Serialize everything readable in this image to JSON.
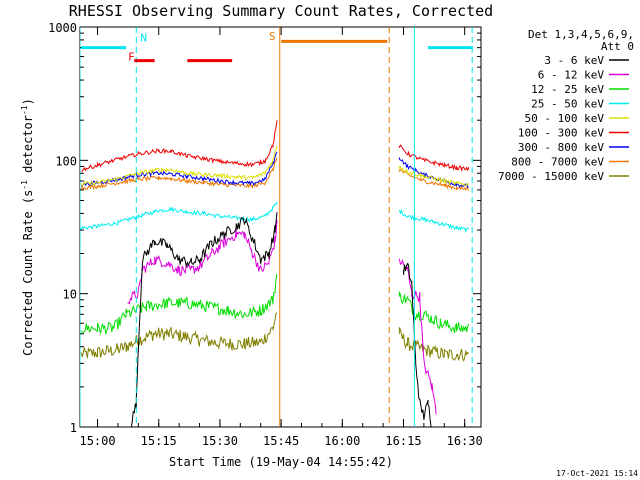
{
  "chart_data": {
    "type": "line",
    "title": "RHESSI Observing Summary Count Rates, Corrected",
    "xlabel": "Start Time (19-May-04 14:55:42)",
    "ylabel": "Corrected Count Rate (s^-1 detector^-1)",
    "ylabel_main": "Corrected Count Rate (s",
    "ylabel_sup1": "-1",
    "ylabel_mid": " detector",
    "ylabel_sup2": "-1",
    "ylabel_end": ")",
    "yscale": "log",
    "ylim": [
      1,
      1000
    ],
    "xlim": [
      "14:55:42",
      "16:34"
    ],
    "x_ticks": [
      "15:00",
      "15:15",
      "15:30",
      "15:45",
      "16:00",
      "16:15",
      "16:30"
    ],
    "y_ticks": [
      "1",
      "10",
      "100",
      "1000"
    ],
    "timestamp": "17-Oct-2021 15:14",
    "legend_header": [
      "Det 1,3,4,5,6,9,",
      "Att 0"
    ],
    "annotations": [
      {
        "text": "N",
        "color": "#00e5ee"
      },
      {
        "text": "F",
        "color": "#ee0000"
      },
      {
        "text": "S",
        "color": "#ee7700"
      }
    ],
    "series": [
      {
        "name": "3 - 6 keV",
        "color": "#000000",
        "points": [
          [
            "15:08",
            1
          ],
          [
            "15:09:30",
            1.5
          ],
          [
            "15:10",
            4
          ],
          [
            "15:11",
            18
          ],
          [
            "15:14",
            25
          ],
          [
            "15:17",
            23
          ],
          [
            "15:20",
            18
          ],
          [
            "15:23",
            17
          ],
          [
            "15:25",
            18
          ],
          [
            "15:28",
            24
          ],
          [
            "15:31",
            28
          ],
          [
            "15:34",
            32
          ],
          [
            "15:36",
            36
          ],
          [
            "15:38",
            26
          ],
          [
            "15:40",
            18
          ],
          [
            "15:42",
            20
          ],
          [
            "15:43:30",
            30
          ],
          [
            "15:44",
            40
          ],
          [
            "16:15",
            15
          ],
          [
            "16:16",
            16
          ],
          [
            "16:17",
            12
          ],
          [
            "16:18",
            3
          ],
          [
            "16:19",
            1.5
          ],
          [
            "16:20",
            1.2
          ],
          [
            "16:21",
            1.5
          ],
          [
            "16:22",
            1
          ]
        ]
      },
      {
        "name": "6 - 12 keV",
        "color": "#dd00dd",
        "points": [
          [
            "15:07:20",
            9
          ],
          [
            "15:10",
            10
          ],
          [
            "15:11",
            15
          ],
          [
            "15:14",
            18
          ],
          [
            "15:17",
            17
          ],
          [
            "15:20",
            15
          ],
          [
            "15:23",
            15
          ],
          [
            "15:25",
            16
          ],
          [
            "15:28",
            20
          ],
          [
            "15:31",
            24
          ],
          [
            "15:34",
            28
          ],
          [
            "15:36",
            28
          ],
          [
            "15:38",
            20
          ],
          [
            "15:40",
            15
          ],
          [
            "15:42",
            17
          ],
          [
            "15:43:30",
            25
          ],
          [
            "15:44",
            33
          ],
          [
            "16:14",
            18
          ],
          [
            "16:16",
            15
          ],
          [
            "16:17",
            10
          ],
          [
            "16:19",
            9.5
          ],
          [
            "16:20",
            3
          ],
          [
            "16:22",
            2
          ],
          [
            "16:23",
            1.3
          ]
        ]
      },
      {
        "name": "12 - 25 keV",
        "color": "#00dd00",
        "points": [
          [
            "14:56",
            5.5
          ],
          [
            "15:00",
            5.5
          ],
          [
            "15:04",
            5.5
          ],
          [
            "15:07",
            7
          ],
          [
            "15:12",
            8
          ],
          [
            "15:17",
            8.5
          ],
          [
            "15:22",
            8.5
          ],
          [
            "15:27",
            8
          ],
          [
            "15:32",
            7.5
          ],
          [
            "15:36",
            7
          ],
          [
            "15:40",
            7.5
          ],
          [
            "15:43",
            9
          ],
          [
            "15:44",
            14
          ],
          [
            "16:14",
            9.5
          ],
          [
            "16:16",
            9
          ],
          [
            "16:18",
            7
          ],
          [
            "16:20",
            7
          ],
          [
            "16:24",
            6
          ],
          [
            "16:28",
            5.5
          ],
          [
            "16:31",
            5.5
          ]
        ]
      },
      {
        "name": "25 - 50 keV",
        "color": "#00eeee",
        "points": [
          [
            "14:56",
            31
          ],
          [
            "15:00",
            32
          ],
          [
            "15:05",
            34
          ],
          [
            "15:10",
            38
          ],
          [
            "15:15",
            42
          ],
          [
            "15:18",
            43
          ],
          [
            "15:22",
            41
          ],
          [
            "15:26",
            40
          ],
          [
            "15:30",
            38
          ],
          [
            "15:34",
            37
          ],
          [
            "15:38",
            36
          ],
          [
            "15:41",
            38
          ],
          [
            "15:43",
            44
          ],
          [
            "15:44",
            48
          ],
          [
            "16:14",
            42
          ],
          [
            "16:16",
            38
          ],
          [
            "16:20",
            36
          ],
          [
            "16:25",
            33
          ],
          [
            "16:28",
            31
          ],
          [
            "16:31",
            30
          ]
        ]
      },
      {
        "name": "50 - 100 keV",
        "color": "#dddd00",
        "points": [
          [
            "14:56",
            66
          ],
          [
            "15:00",
            68
          ],
          [
            "15:05",
            73
          ],
          [
            "15:10",
            80
          ],
          [
            "15:15",
            85
          ],
          [
            "15:18",
            85
          ],
          [
            "15:22",
            80
          ],
          [
            "15:26",
            78
          ],
          [
            "15:30",
            77
          ],
          [
            "15:34",
            75
          ],
          [
            "15:38",
            74
          ],
          [
            "15:41",
            80
          ],
          [
            "15:43",
            100
          ],
          [
            "15:44",
            130
          ],
          [
            "16:14",
            90
          ],
          [
            "16:16",
            82
          ],
          [
            "16:20",
            76
          ],
          [
            "16:25",
            70
          ],
          [
            "16:28",
            67
          ],
          [
            "16:31",
            66
          ]
        ]
      },
      {
        "name": "100 - 300 keV",
        "color": "#ee0000",
        "points": [
          [
            "14:56",
            85
          ],
          [
            "15:00",
            92
          ],
          [
            "15:05",
            102
          ],
          [
            "15:10",
            112
          ],
          [
            "15:15",
            118
          ],
          [
            "15:18",
            117
          ],
          [
            "15:22",
            108
          ],
          [
            "15:26",
            103
          ],
          [
            "15:30",
            98
          ],
          [
            "15:34",
            95
          ],
          [
            "15:38",
            93
          ],
          [
            "15:41",
            98
          ],
          [
            "15:43",
            130
          ],
          [
            "15:44",
            195
          ],
          [
            "16:14",
            128
          ],
          [
            "16:16",
            112
          ],
          [
            "16:20",
            100
          ],
          [
            "16:25",
            92
          ],
          [
            "16:28",
            88
          ],
          [
            "16:31",
            86
          ]
        ]
      },
      {
        "name": "300 - 800 keV",
        "color": "#0000ee",
        "points": [
          [
            "14:56",
            66
          ],
          [
            "15:00",
            68
          ],
          [
            "15:05",
            72
          ],
          [
            "15:10",
            78
          ],
          [
            "15:15",
            80
          ],
          [
            "15:18",
            79
          ],
          [
            "15:22",
            76
          ],
          [
            "15:26",
            73
          ],
          [
            "15:30",
            70
          ],
          [
            "15:34",
            68
          ],
          [
            "15:38",
            67
          ],
          [
            "15:41",
            72
          ],
          [
            "15:43",
            95
          ],
          [
            "15:44",
            115
          ],
          [
            "16:14",
            105
          ],
          [
            "16:16",
            90
          ],
          [
            "16:20",
            78
          ],
          [
            "16:25",
            70
          ],
          [
            "16:28",
            66
          ],
          [
            "16:31",
            64
          ]
        ]
      },
      {
        "name": "800 - 7000 keV",
        "color": "#ee7700",
        "points": [
          [
            "14:56",
            62
          ],
          [
            "15:00",
            64
          ],
          [
            "15:05",
            68
          ],
          [
            "15:10",
            72
          ],
          [
            "15:15",
            74
          ],
          [
            "15:18",
            73
          ],
          [
            "15:22",
            70
          ],
          [
            "15:26",
            68
          ],
          [
            "15:30",
            66
          ],
          [
            "15:34",
            65
          ],
          [
            "15:38",
            64
          ],
          [
            "15:41",
            68
          ],
          [
            "15:43",
            85
          ],
          [
            "15:44",
            105
          ],
          [
            "16:14",
            85
          ],
          [
            "16:16",
            78
          ],
          [
            "16:20",
            70
          ],
          [
            "16:25",
            65
          ],
          [
            "16:28",
            62
          ],
          [
            "16:31",
            61
          ]
        ]
      },
      {
        "name": "7000 - 15000 keV",
        "color": "#808000",
        "points": [
          [
            "14:56",
            3.5
          ],
          [
            "15:00",
            3.6
          ],
          [
            "15:05",
            3.8
          ],
          [
            "15:07",
            4
          ],
          [
            "15:10",
            4.5
          ],
          [
            "15:14",
            5
          ],
          [
            "15:17",
            5
          ],
          [
            "15:21",
            4.8
          ],
          [
            "15:25",
            4.5
          ],
          [
            "15:29",
            4.3
          ],
          [
            "15:33",
            4.2
          ],
          [
            "15:36",
            4.2
          ],
          [
            "15:40",
            4.3
          ],
          [
            "15:43",
            5.5
          ],
          [
            "15:44",
            7.5
          ],
          [
            "16:14",
            5
          ],
          [
            "16:16",
            4.2
          ],
          [
            "16:20",
            3.8
          ],
          [
            "16:25",
            3.5
          ],
          [
            "16:28",
            3.5
          ],
          [
            "16:31",
            3.5
          ]
        ]
      }
    ],
    "bars": {
      "N": {
        "color": "#00e5ee",
        "y": 700,
        "spans": [
          [
            "14:56",
            "15:07"
          ],
          [
            "16:21",
            "16:32"
          ]
        ]
      },
      "F": {
        "color": "#ee0000",
        "y": 560,
        "spans": [
          [
            "15:09",
            "15:14"
          ],
          [
            "15:22",
            "15:33"
          ]
        ]
      },
      "S": {
        "color": "#ee7700",
        "y": 780,
        "spans": [
          [
            "15:45",
            "16:11"
          ]
        ]
      }
    },
    "vlines": [
      {
        "t": "14:55:42",
        "color": "#00e5ee",
        "dash": "solid"
      },
      {
        "t": "15:09:30",
        "color": "#00e5ee",
        "dash": "dashed"
      },
      {
        "t": "15:44:40",
        "color": "#ee7700",
        "dash": "solid"
      },
      {
        "t": "16:11:30",
        "color": "#ee7700",
        "dash": "dashed"
      },
      {
        "t": "16:17:40",
        "color": "#00e5ee",
        "dash": "solid"
      },
      {
        "t": "16:31:50",
        "color": "#00e5ee",
        "dash": "dashed"
      }
    ]
  }
}
